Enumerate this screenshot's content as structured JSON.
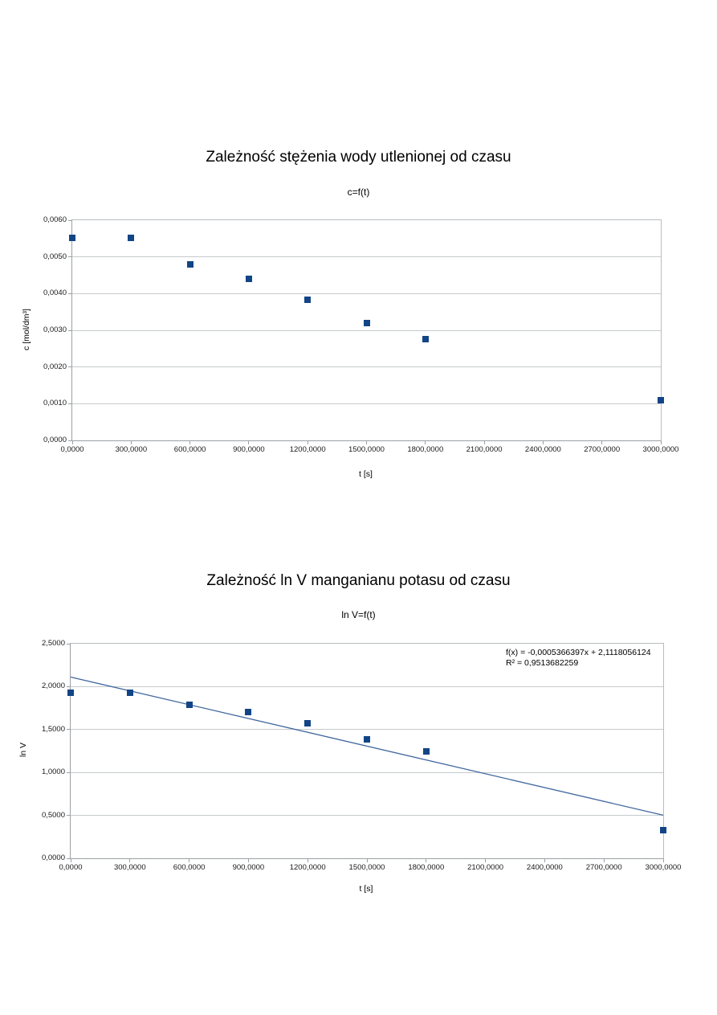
{
  "page": {
    "background": "#ffffff"
  },
  "colors": {
    "point": "#114586",
    "trend_line": "#41689e",
    "gridline": "#c6cacd",
    "axis_line": "#9ba0a4",
    "text": "#000000"
  },
  "chart_data": [
    {
      "type": "scatter",
      "title": "Zależność stężenia wody utlenionej od czasu",
      "subtitle": "c=f(t)",
      "xlabel": "t [s]",
      "ylabel": "c [mol/dm³]",
      "xlim": [
        0,
        3000
      ],
      "ylim": [
        0,
        0.006
      ],
      "grid": "horizontal",
      "legend": "none",
      "point_color": "#114586",
      "x": [
        0,
        300,
        600,
        900,
        1200,
        1500,
        1800,
        3000
      ],
      "y": [
        0.00552,
        0.00552,
        0.0048,
        0.0044,
        0.00384,
        0.0032,
        0.00276,
        0.0011
      ],
      "x_tick_values": [
        0,
        300,
        600,
        900,
        1200,
        1500,
        1800,
        2100,
        2400,
        2700,
        3000
      ],
      "x_tick_labels": [
        "0,0000",
        "300,0000",
        "600,0000",
        "900,0000",
        "1200,0000",
        "1500,0000",
        "1800,0000",
        "2100,0000",
        "2400,0000",
        "2700,0000",
        "3000,0000"
      ],
      "y_tick_values": [
        0,
        0.001,
        0.002,
        0.003,
        0.004,
        0.005,
        0.006
      ],
      "y_tick_labels": [
        "0,0000",
        "0,0010",
        "0,0020",
        "0,0030",
        "0,0040",
        "0,0050",
        "0,0060"
      ]
    },
    {
      "type": "scatter",
      "title": "Zależność ln V manganianu potasu od czasu",
      "subtitle": "ln V=f(t)",
      "xlabel": "t [s]",
      "ylabel": "ln V",
      "xlim": [
        0,
        3000
      ],
      "ylim": [
        0,
        2.5
      ],
      "grid": "horizontal",
      "legend": "none",
      "point_color": "#114586",
      "x": [
        0,
        300,
        600,
        900,
        1200,
        1500,
        1800,
        3000
      ],
      "y": [
        1.93,
        1.93,
        1.79,
        1.7,
        1.57,
        1.39,
        1.25,
        0.33
      ],
      "x_tick_values": [
        0,
        300,
        600,
        900,
        1200,
        1500,
        1800,
        2100,
        2400,
        2700,
        3000
      ],
      "x_tick_labels": [
        "0,0000",
        "300,0000",
        "600,0000",
        "900,0000",
        "1200,0000",
        "1500,0000",
        "1800,0000",
        "2100,0000",
        "2400,0000",
        "2700,0000",
        "3000,0000"
      ],
      "y_tick_values": [
        0,
        0.5,
        1.0,
        1.5,
        2.0,
        2.5
      ],
      "y_tick_labels": [
        "0,0000",
        "0,5000",
        "1,0000",
        "1,5000",
        "2,0000",
        "2,5000"
      ],
      "trendline": {
        "slope": -0.0005366397,
        "intercept": 2.1118056124,
        "r_squared": 0.9513682259,
        "color": "#41689e",
        "label_line1": "f(x) = -0,0005366397x + 2,1118056124",
        "label_line2": "R² = 0,9513682259"
      }
    }
  ]
}
